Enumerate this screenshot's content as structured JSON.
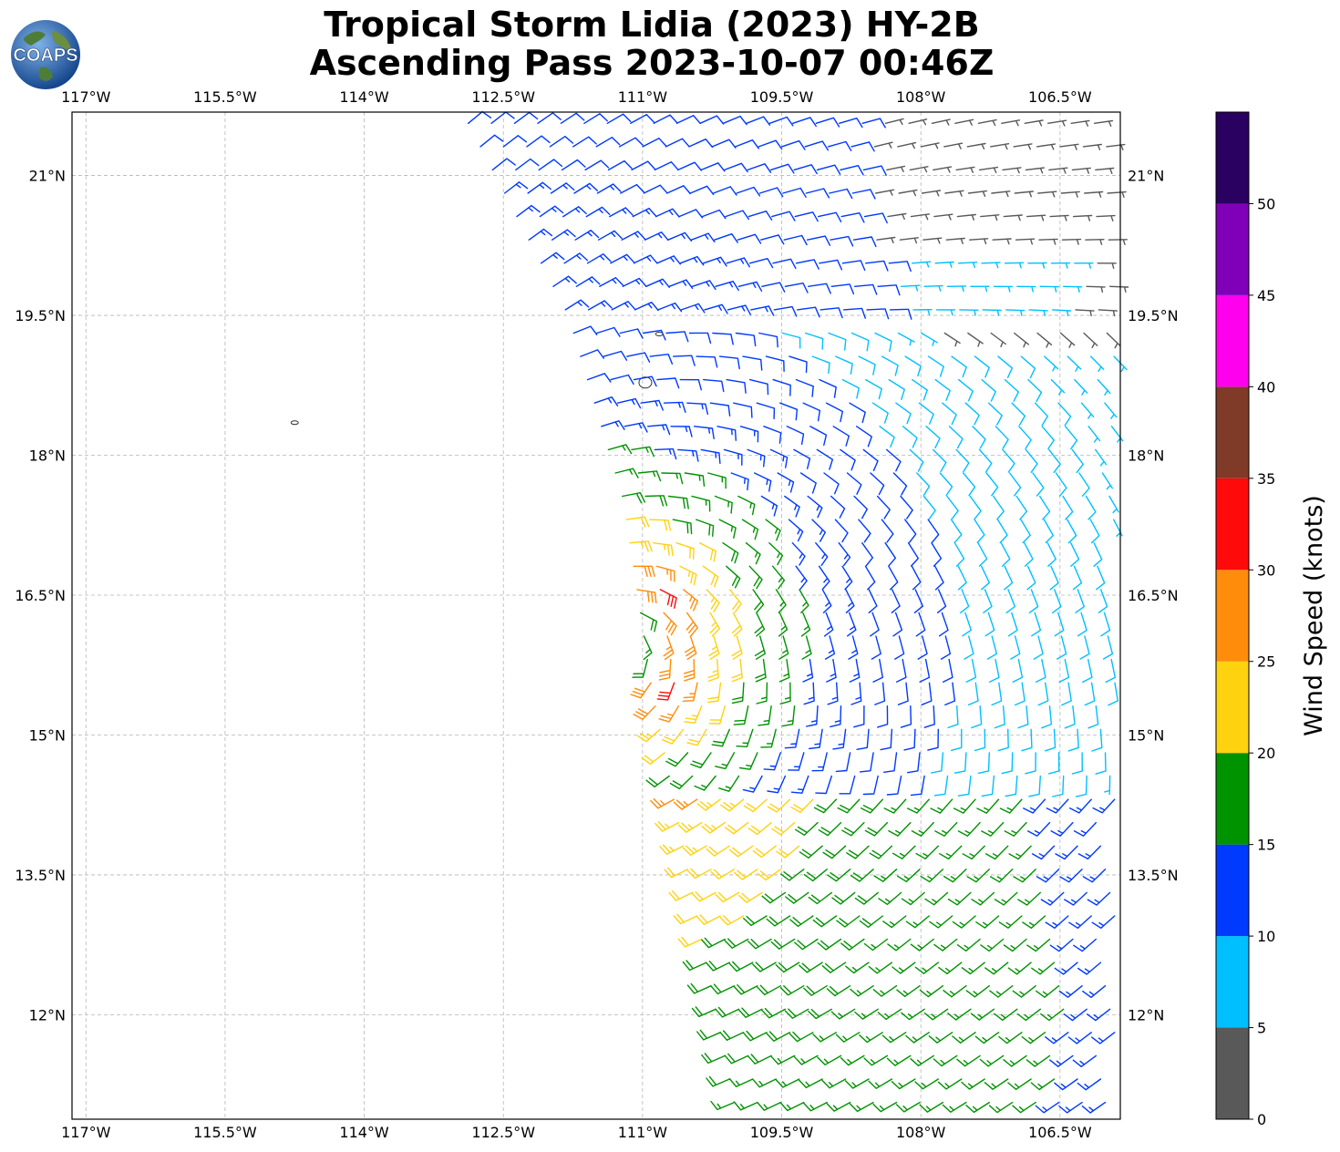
{
  "title": {
    "line1": "Tropical Storm Lidia (2023) HY-2B",
    "line2": "Ascending Pass 2023-10-07 00:46Z"
  },
  "logo": {
    "text": "COAPS"
  },
  "colors": {
    "grid": "#b5b5b5",
    "land": "#333333",
    "globe_ocean": "#1f5fb0",
    "globe_land": "#4e7d3a"
  },
  "chart_data": {
    "type": "wind-barbs",
    "projection": "plate carree",
    "xlim": [
      -117.15,
      -105.85
    ],
    "ylim": [
      10.88,
      21.68
    ],
    "x_ticks": [
      {
        "value": -117.0,
        "label": "117°W"
      },
      {
        "value": -115.5,
        "label": "115.5°W"
      },
      {
        "value": -114.0,
        "label": "114°W"
      },
      {
        "value": -112.5,
        "label": "112.5°W"
      },
      {
        "value": -111.0,
        "label": "111°W"
      },
      {
        "value": -109.5,
        "label": "109.5°W"
      },
      {
        "value": -108.0,
        "label": "108°W"
      },
      {
        "value": -106.5,
        "label": "106.5°W"
      }
    ],
    "y_ticks": [
      {
        "value": 12.0,
        "label": "12°N"
      },
      {
        "value": 13.5,
        "label": "13.5°N"
      },
      {
        "value": 15.0,
        "label": "15°N"
      },
      {
        "value": 16.5,
        "label": "16.5°N"
      },
      {
        "value": 18.0,
        "label": "18°N"
      },
      {
        "value": 19.5,
        "label": "19.5°N"
      },
      {
        "value": 21.0,
        "label": "21°N"
      }
    ],
    "grid": true,
    "storm": {
      "name": "Lidia",
      "center_approx": {
        "lon": -111.3,
        "lat": 16.0
      },
      "circulation": "cyclonic"
    },
    "swath": {
      "west_edge": [
        {
          "lat": 21.6,
          "lon": -112.9
        },
        {
          "lat": 19.5,
          "lon": -111.8
        },
        {
          "lat": 17.5,
          "lon": -111.2
        },
        {
          "lat": 15.5,
          "lon": -110.9
        },
        {
          "lat": 13.5,
          "lon": -110.5
        },
        {
          "lat": 11.0,
          "lon": -110.0
        }
      ],
      "east_edge": -105.9
    },
    "islands": [
      {
        "lon": -114.75,
        "lat": 18.35
      },
      {
        "lon": -110.97,
        "lat": 18.78
      },
      {
        "lon": -110.82,
        "lat": 19.3
      }
    ],
    "colorbar": {
      "label": "Wind Speed (knots)",
      "bounds": [
        0,
        5,
        10,
        15,
        20,
        25,
        30,
        35,
        40,
        45,
        50,
        55
      ],
      "tick_values": [
        0,
        5,
        10,
        15,
        20,
        25,
        30,
        35,
        40,
        45,
        50
      ],
      "tick_labels": [
        "0",
        "5",
        "10",
        "15",
        "20",
        "25",
        "30",
        "35",
        "40",
        "45",
        "50"
      ],
      "colors": [
        "#595959",
        "#00bfff",
        "#0039ff",
        "#009300",
        "#ffd20f",
        "#ff8c0a",
        "#ff0a0a",
        "#7f3b28",
        "#ff00ee",
        "#8000b8",
        "#2a0060"
      ]
    },
    "wind_field": {
      "units": "knots",
      "max_wind_approx": 32,
      "radius_of_max_wind_deg": 0.7,
      "environmental_flow": "southwesterly to westerly south of 14.5°N; northeasterly north of 19.5°N",
      "color_regions": [
        {
          "area": "northeast corner",
          "speed_range": "0-10"
        },
        {
          "area": "northern swath",
          "speed_range": "10-20"
        },
        {
          "area": "inner core west of 110°W",
          "speed_range": "20-33"
        },
        {
          "area": "east of 109°W",
          "speed_range": "10-15"
        },
        {
          "area": "south of 14°N",
          "speed_range": "15-22"
        }
      ]
    }
  }
}
